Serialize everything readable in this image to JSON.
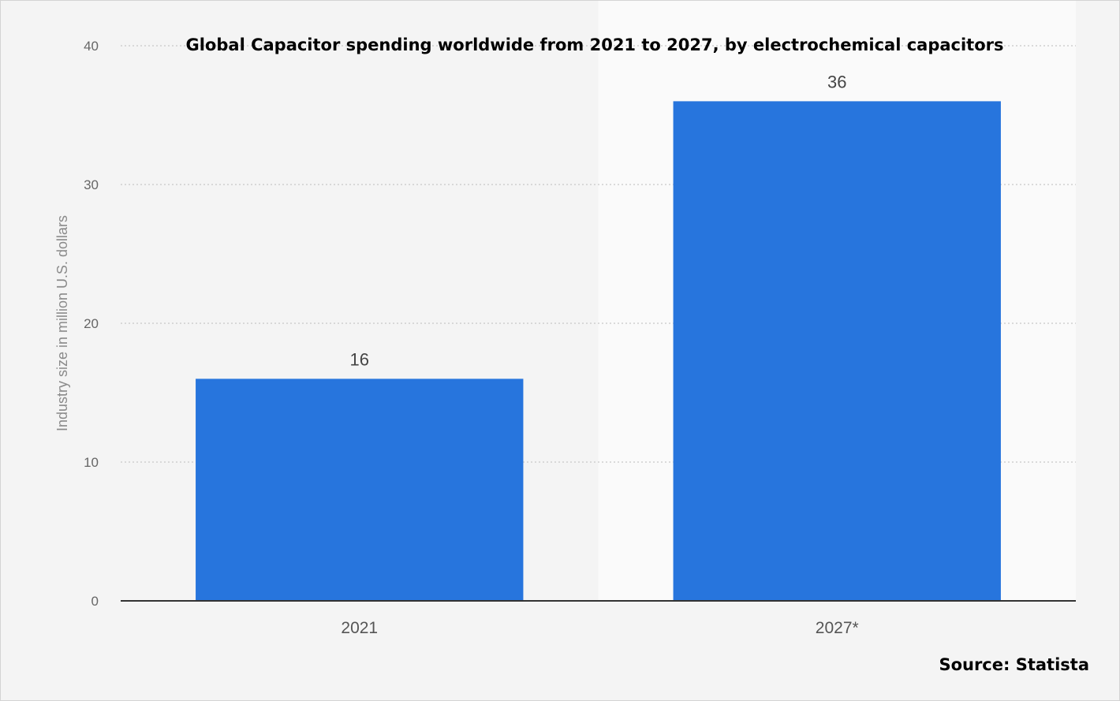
{
  "chart_data": {
    "type": "bar",
    "title": "Global Capacitor spending worldwide from 2021 to 2027, by electrochemical capacitors",
    "categories": [
      "2021",
      "2027*"
    ],
    "values": [
      16,
      36
    ],
    "data_labels": [
      "16",
      "36"
    ],
    "ylabel": "Industry size in million U.S. dollars",
    "xlabel": "",
    "ylim": [
      0,
      40
    ],
    "yticks": [
      0,
      10,
      20,
      30,
      40
    ],
    "ytick_labels": [
      "0",
      "10",
      "20",
      "30",
      "40"
    ],
    "grid": true,
    "legend": "none",
    "bar_color": "#2775dd",
    "highlight_band_color": "#fafafa"
  },
  "source": "Source: Statista"
}
